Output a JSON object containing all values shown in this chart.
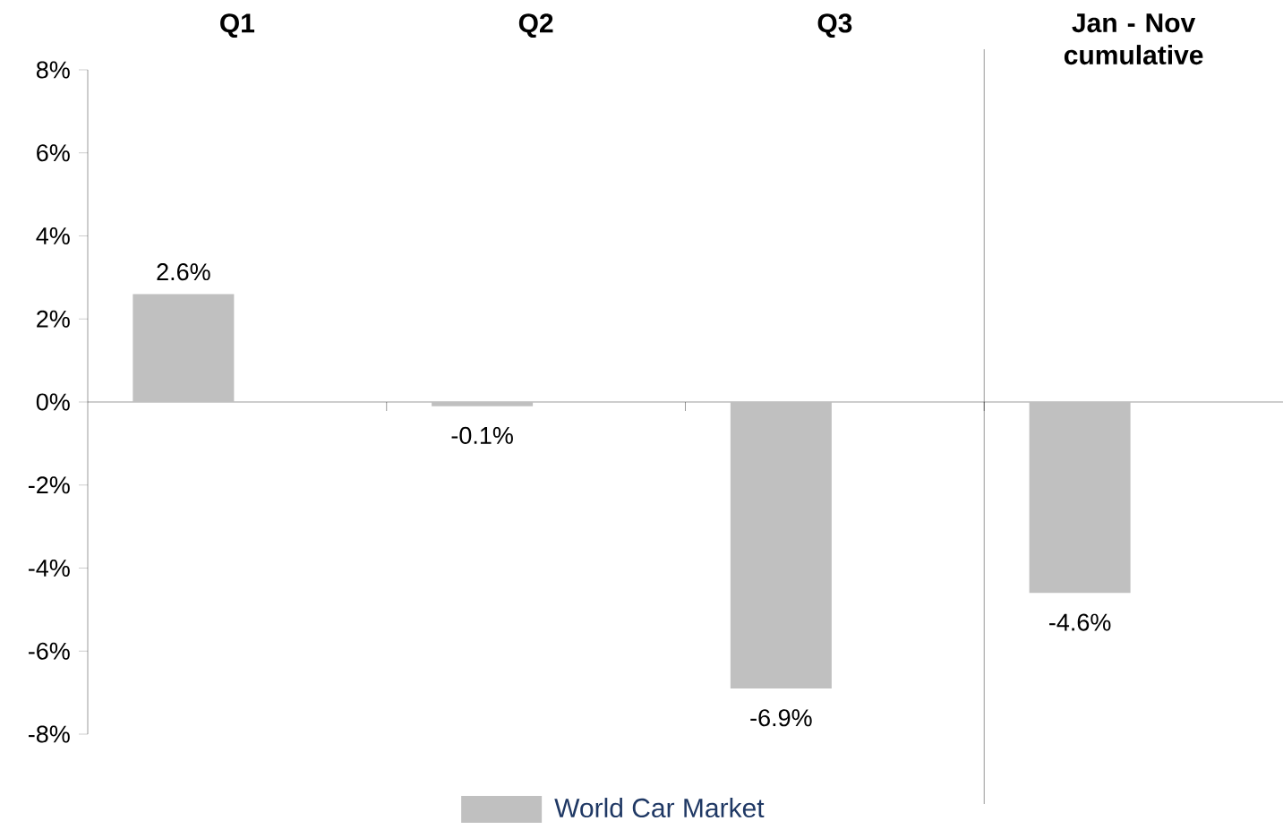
{
  "chart_data": {
    "type": "bar",
    "categories": [
      "Q1",
      "Q2",
      "Q3",
      "Jan - Nov cumulative"
    ],
    "series": [
      {
        "name": "World Car Market",
        "color": "#c0c0c0",
        "values": [
          2.6,
          -0.1,
          -6.9,
          -4.6
        ]
      }
    ],
    "value_labels": [
      "2.6%",
      "-0.1%",
      "-6.9%",
      "-4.6%"
    ],
    "ylim": [
      -8,
      8
    ],
    "yticks": [
      {
        "value": -8,
        "label": "-8%"
      },
      {
        "value": -6,
        "label": "-6%"
      },
      {
        "value": -4,
        "label": "-4%"
      },
      {
        "value": -2,
        "label": "-2%"
      },
      {
        "value": 0,
        "label": "0%"
      },
      {
        "value": 2,
        "label": "2%"
      },
      {
        "value": 4,
        "label": "4%"
      },
      {
        "value": 6,
        "label": "6%"
      },
      {
        "value": 8,
        "label": "8%"
      }
    ],
    "legend": "bottom"
  }
}
